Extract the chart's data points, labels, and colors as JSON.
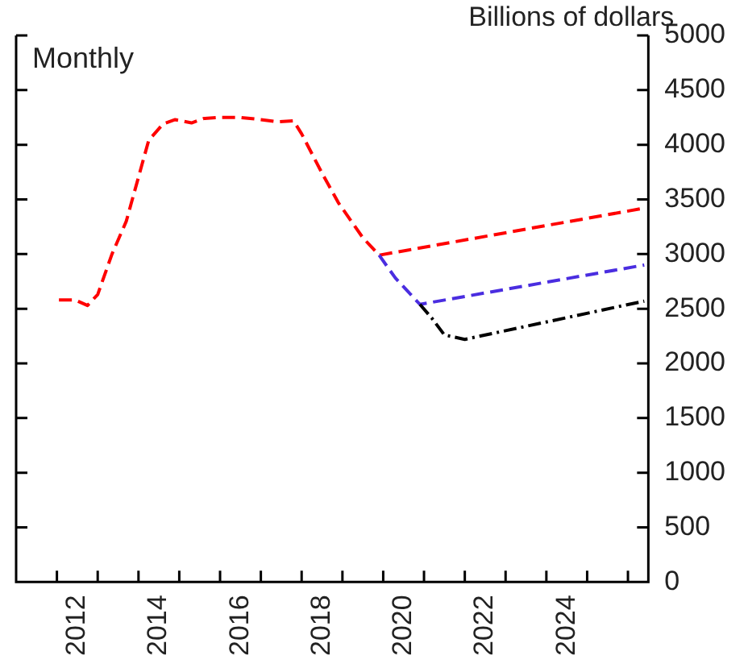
{
  "chart_data": {
    "type": "line",
    "y2label": "Billions of dollars",
    "annotations": [
      "Monthly"
    ],
    "xlim": [
      2011,
      2026.5
    ],
    "xticks": [
      {
        "value": 2012,
        "label": null
      },
      {
        "value": 2012.5,
        "label": "2012"
      },
      {
        "value": 2013,
        "label": null
      },
      {
        "value": 2014,
        "label": null
      },
      {
        "value": 2014.5,
        "label": "2014"
      },
      {
        "value": 2015,
        "label": null
      },
      {
        "value": 2016,
        "label": null
      },
      {
        "value": 2016.5,
        "label": "2016"
      },
      {
        "value": 2017,
        "label": null
      },
      {
        "value": 2018,
        "label": null
      },
      {
        "value": 2018.5,
        "label": "2018"
      },
      {
        "value": 2019,
        "label": null
      },
      {
        "value": 2020,
        "label": null
      },
      {
        "value": 2020.5,
        "label": "2020"
      },
      {
        "value": 2021,
        "label": null
      },
      {
        "value": 2022,
        "label": null
      },
      {
        "value": 2022.5,
        "label": "2022"
      },
      {
        "value": 2023,
        "label": null
      },
      {
        "value": 2024,
        "label": null
      },
      {
        "value": 2024.5,
        "label": "2024"
      },
      {
        "value": 2025,
        "label": null
      },
      {
        "value": 2026,
        "label": null
      }
    ],
    "y2lim": [
      0,
      5000
    ],
    "y2ticks": [
      0,
      500,
      1000,
      1500,
      2000,
      2500,
      3000,
      3500,
      4000,
      4500,
      5000
    ],
    "marker": "none",
    "grid": false,
    "legend": false,
    "series": [
      {
        "color": "#000000",
        "axis": "y2",
        "line_style": "dotted",
        "x": [
          2020.9,
          2021.2,
          2021.5,
          2022.0,
          2026.4
        ],
        "values": [
          2540,
          2410,
          2260,
          2220,
          2570
        ]
      },
      {
        "color": "#4a2de0",
        "axis": "y2",
        "line_style": "dashed",
        "x": [
          2019.9,
          2020.3,
          2020.9,
          2026.4
        ],
        "values": [
          2990,
          2780,
          2540,
          2900
        ]
      },
      {
        "color": "#ff0000",
        "axis": "y2",
        "line_style": "dashed",
        "x": [
          2012.05,
          2012.45,
          2012.75,
          2013.0,
          2013.35,
          2013.7,
          2014.25,
          2014.6,
          2014.9,
          2015.3,
          2015.6,
          2016.0,
          2016.5,
          2017.0,
          2017.4,
          2017.8,
          2018.0,
          2018.5,
          2018.9,
          2019.5,
          2019.9,
          2026.4
        ],
        "values": [
          2580,
          2580,
          2530,
          2630,
          3000,
          3300,
          4040,
          4190,
          4230,
          4200,
          4240,
          4250,
          4250,
          4230,
          4210,
          4220,
          4100,
          3740,
          3470,
          3150,
          2990,
          3420
        ]
      }
    ]
  }
}
